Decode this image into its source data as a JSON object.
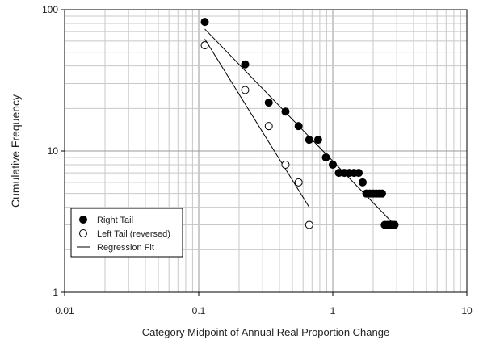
{
  "chart_data": {
    "type": "scatter",
    "xlabel": "Category Midpoint of Annual Real Proportion Change",
    "ylabel": "Cumulative Frequency",
    "xscale": "log",
    "yscale": "log",
    "xlim": [
      0.01,
      10
    ],
    "ylim": [
      1,
      100
    ],
    "x_ticks": [
      {
        "value": 0.01,
        "label": "0.01"
      },
      {
        "value": 0.1,
        "label": "0.1"
      },
      {
        "value": 1,
        "label": "1"
      },
      {
        "value": 10,
        "label": "10"
      }
    ],
    "y_ticks": [
      {
        "value": 1,
        "label": "1"
      },
      {
        "value": 10,
        "label": "10"
      },
      {
        "value": 100,
        "label": "100"
      }
    ],
    "grid": true,
    "legend_position": "bottom-left",
    "series": [
      {
        "name": "Right Tail",
        "marker": "filled-circle",
        "color": "#000000",
        "points": [
          [
            0.111,
            82
          ],
          [
            0.222,
            41
          ],
          [
            0.333,
            22
          ],
          [
            0.444,
            19
          ],
          [
            0.556,
            15
          ],
          [
            0.667,
            12
          ],
          [
            0.778,
            12
          ],
          [
            0.889,
            9
          ],
          [
            1.0,
            8
          ],
          [
            1.11,
            7
          ],
          [
            1.22,
            7
          ],
          [
            1.33,
            7
          ],
          [
            1.44,
            7
          ],
          [
            1.56,
            7
          ],
          [
            1.67,
            6
          ],
          [
            1.78,
            5
          ],
          [
            1.89,
            5
          ],
          [
            2.0,
            5
          ],
          [
            2.11,
            5
          ],
          [
            2.22,
            5
          ],
          [
            2.33,
            5
          ],
          [
            2.44,
            3
          ],
          [
            2.56,
            3
          ],
          [
            2.67,
            3
          ],
          [
            2.78,
            3
          ],
          [
            2.89,
            3
          ]
        ]
      },
      {
        "name": "Left Tail (reversed)",
        "marker": "open-circle",
        "color": "#000000",
        "points": [
          [
            0.111,
            56
          ],
          [
            0.222,
            27
          ],
          [
            0.333,
            15
          ],
          [
            0.444,
            8
          ],
          [
            0.556,
            6
          ],
          [
            0.667,
            3
          ]
        ]
      },
      {
        "name": "Regression Fit",
        "marker": "line",
        "color": "#000000",
        "lines": [
          [
            [
              0.111,
              73
            ],
            [
              2.89,
              3
            ]
          ],
          [
            [
              0.111,
              62
            ],
            [
              0.667,
              4
            ]
          ]
        ]
      }
    ]
  }
}
